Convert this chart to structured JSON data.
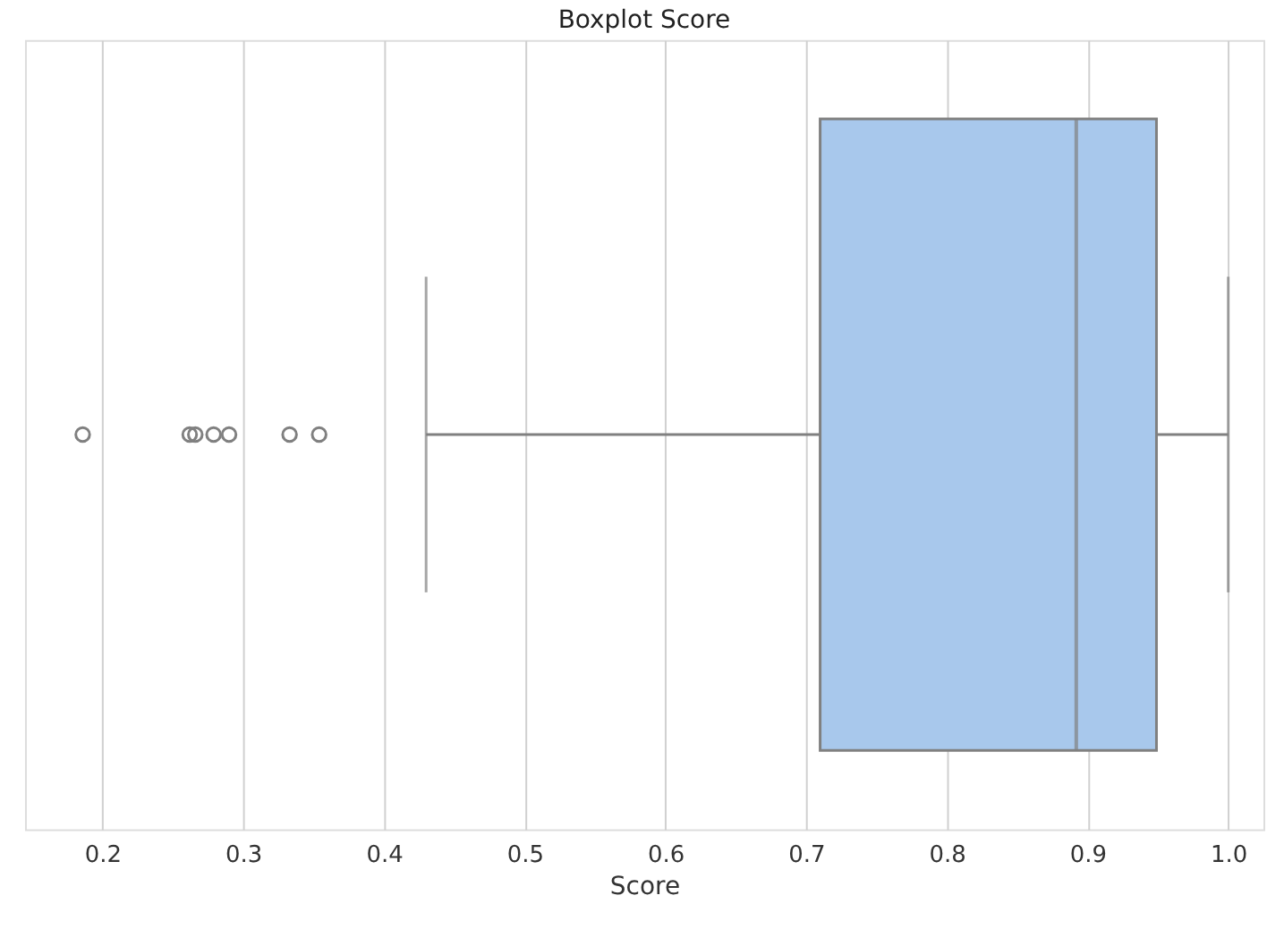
{
  "chart_data": {
    "type": "box",
    "title": "Boxplot Score",
    "xlabel": "Score",
    "orientation": "horizontal",
    "categories": [
      null
    ],
    "color": "#a8c8ec",
    "boxes": [
      {
        "low": 0.43,
        "q1": 0.71,
        "median": 0.892,
        "q3": 0.949,
        "high": 1.0,
        "outliers": [
          0.186,
          0.262,
          0.266,
          0.279,
          0.29,
          0.333,
          0.354
        ]
      }
    ],
    "xlim": [
      0.145,
      1.025
    ],
    "xticks": [
      0.2,
      0.3,
      0.4,
      0.5,
      0.6,
      0.7,
      0.8,
      0.9,
      {
        "value": 1.0,
        "label": "1.0"
      }
    ],
    "grid": "x"
  }
}
